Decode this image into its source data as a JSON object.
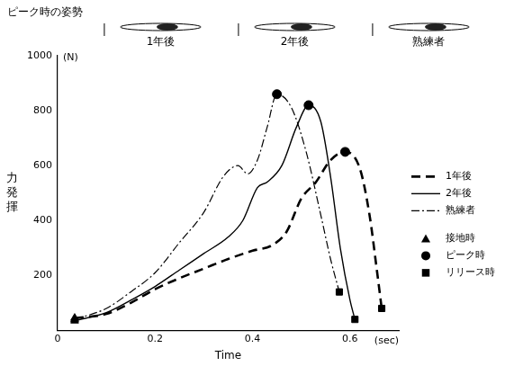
{
  "chart_data": {
    "type": "line",
    "title": "ピーク時の姿勢",
    "annotations": [
      "1年後",
      "2年後",
      "熟練者"
    ],
    "x_label": "Time",
    "x_unit": "(sec)",
    "y_label": "力発揮",
    "y_unit": "(N)",
    "xlim": [
      0,
      0.7
    ],
    "xticks": [
      0,
      0.2,
      0.4,
      0.6
    ],
    "ylim": [
      0,
      1000
    ],
    "yticks": [
      200,
      400,
      600,
      800,
      1000
    ],
    "grid": false,
    "legend": "right",
    "series": [
      {
        "name": "1年後",
        "type": "line",
        "color": "#000000",
        "line_style": "dashed",
        "x": [
          0.035,
          0.1,
          0.15,
          0.2,
          0.25,
          0.3,
          0.35,
          0.4,
          0.44,
          0.47,
          0.5,
          0.53,
          0.56,
          0.59,
          0.62,
          0.64,
          0.655,
          0.665
        ],
        "values": [
          45,
          60,
          100,
          150,
          190,
          225,
          260,
          290,
          310,
          360,
          480,
          540,
          620,
          650,
          590,
          420,
          220,
          80
        ]
      },
      {
        "name": "2年後",
        "type": "line",
        "color": "#000000",
        "line_style": "solid",
        "x": [
          0.035,
          0.1,
          0.15,
          0.2,
          0.25,
          0.3,
          0.35,
          0.38,
          0.41,
          0.43,
          0.46,
          0.49,
          0.515,
          0.54,
          0.56,
          0.58,
          0.6,
          0.61
        ],
        "values": [
          35,
          65,
          110,
          160,
          220,
          280,
          340,
          400,
          520,
          540,
          600,
          740,
          820,
          760,
          560,
          300,
          110,
          40
        ]
      },
      {
        "name": "熟練者",
        "type": "line",
        "color": "#000000",
        "line_style": "dashdot",
        "x": [
          0.035,
          0.1,
          0.15,
          0.2,
          0.25,
          0.3,
          0.34,
          0.37,
          0.39,
          0.41,
          0.43,
          0.45,
          0.48,
          0.51,
          0.54,
          0.56,
          0.578
        ],
        "values": [
          40,
          80,
          140,
          210,
          320,
          430,
          560,
          600,
          570,
          620,
          740,
          860,
          810,
          650,
          420,
          260,
          140
        ]
      },
      {
        "name": "接地時",
        "type": "scatter",
        "color": "#000000",
        "marker": "triangle",
        "x": [
          0.035,
          0.035,
          0.035
        ],
        "values": [
          45,
          35,
          40
        ]
      },
      {
        "name": "ピーク時",
        "type": "scatter",
        "color": "#000000",
        "marker": "circle",
        "x": [
          0.59,
          0.515,
          0.45
        ],
        "values": [
          650,
          820,
          860
        ]
      },
      {
        "name": "リリース時",
        "type": "scatter",
        "color": "#000000",
        "marker": "square",
        "x": [
          0.665,
          0.61,
          0.578
        ],
        "values": [
          80,
          40,
          140
        ]
      }
    ]
  }
}
